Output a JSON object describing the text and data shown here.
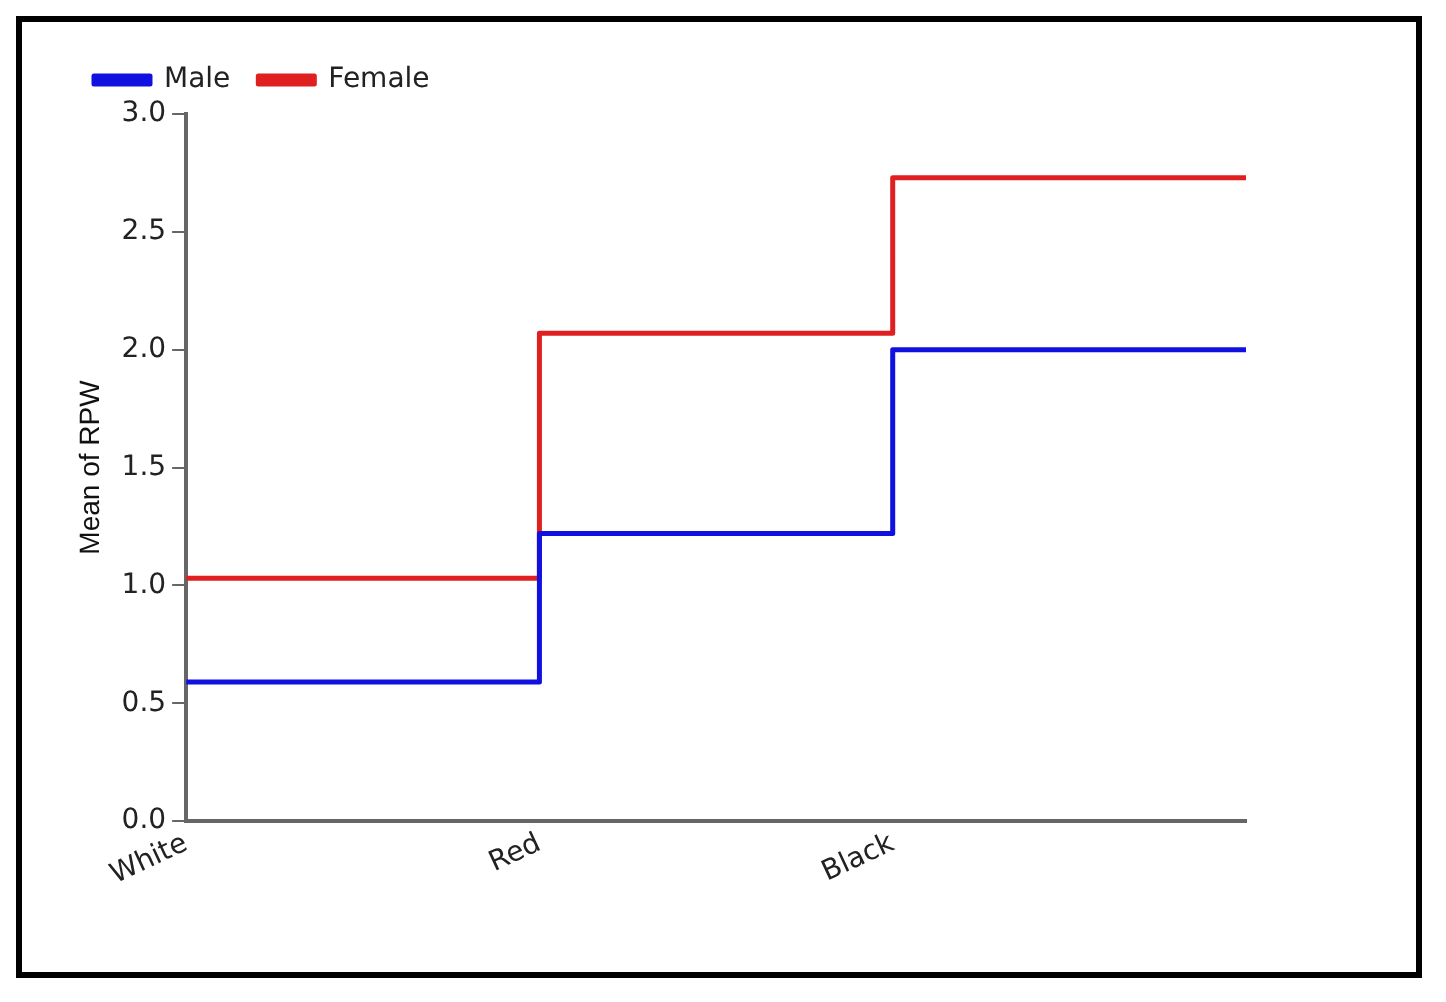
{
  "chart_data": {
    "type": "step",
    "ylabel": "Mean of RPW",
    "categories": [
      "White",
      "Red",
      "Black",
      null
    ],
    "series": [
      {
        "name": "Male",
        "color": "#1010e0",
        "values": [
          0.59,
          1.22,
          2.0,
          2.0
        ]
      },
      {
        "name": "Female",
        "color": "#e02020",
        "values": [
          1.03,
          2.07,
          2.73,
          2.73
        ]
      }
    ],
    "ylim": [
      0,
      3
    ],
    "yticks": [
      {
        "value": 0,
        "label": "0.0"
      },
      {
        "value": 0.5,
        "label": "0.5"
      },
      {
        "value": 1,
        "label": "1.0"
      },
      {
        "value": 1.5,
        "label": "1.5"
      },
      {
        "value": 2,
        "label": "2.0"
      },
      {
        "value": 2.5,
        "label": "2.5"
      },
      {
        "value": 3,
        "label": "3.0"
      }
    ],
    "legend": "top left",
    "grid": false
  }
}
